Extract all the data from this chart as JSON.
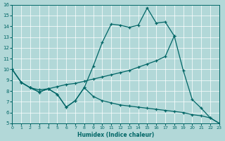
{
  "xlabel": "Humidex (Indice chaleur)",
  "xlim": [
    0,
    23
  ],
  "ylim": [
    5,
    16
  ],
  "xticks": [
    0,
    1,
    2,
    3,
    4,
    5,
    6,
    7,
    8,
    9,
    10,
    11,
    12,
    13,
    14,
    15,
    16,
    17,
    18,
    19,
    20,
    21,
    22,
    23
  ],
  "yticks": [
    5,
    6,
    7,
    8,
    9,
    10,
    11,
    12,
    13,
    14,
    15,
    16
  ],
  "background_color": "#b2d8d8",
  "grid_color": "#ffffff",
  "line_color": "#006666",
  "line1_x": [
    0,
    1,
    2,
    3,
    4,
    5,
    6,
    7,
    8,
    9,
    10,
    11,
    12,
    13,
    14,
    15,
    16,
    17,
    18
  ],
  "line1_y": [
    10,
    8.8,
    8.3,
    7.9,
    8.2,
    7.7,
    6.5,
    7.1,
    8.3,
    10.3,
    12.5,
    14.2,
    14.1,
    13.9,
    14.1,
    15.7,
    14.3,
    14.4,
    13.1
  ],
  "line2_x": [
    0,
    1,
    2,
    3,
    4,
    5,
    6,
    7,
    8,
    9,
    10,
    11,
    12,
    13,
    14,
    15,
    16,
    17,
    18,
    19,
    20,
    21,
    22,
    23
  ],
  "line2_y": [
    10,
    8.8,
    8.3,
    8.1,
    8.2,
    8.4,
    8.6,
    8.7,
    8.9,
    9.1,
    9.3,
    9.5,
    9.7,
    9.9,
    10.2,
    10.5,
    10.8,
    11.2,
    13.1,
    9.9,
    7.2,
    6.4,
    5.5,
    5.0
  ],
  "line3_x": [
    0,
    1,
    2,
    3,
    4,
    5,
    6,
    7,
    8,
    9,
    10,
    11,
    12,
    13,
    14,
    15,
    16,
    17,
    18,
    19,
    20,
    21,
    22,
    23
  ],
  "line3_y": [
    10,
    8.8,
    8.3,
    7.9,
    8.2,
    7.7,
    6.5,
    7.1,
    8.3,
    7.5,
    7.1,
    6.9,
    6.7,
    6.6,
    6.5,
    6.4,
    6.3,
    6.2,
    6.1,
    6.0,
    5.8,
    5.7,
    5.5,
    5.0
  ]
}
